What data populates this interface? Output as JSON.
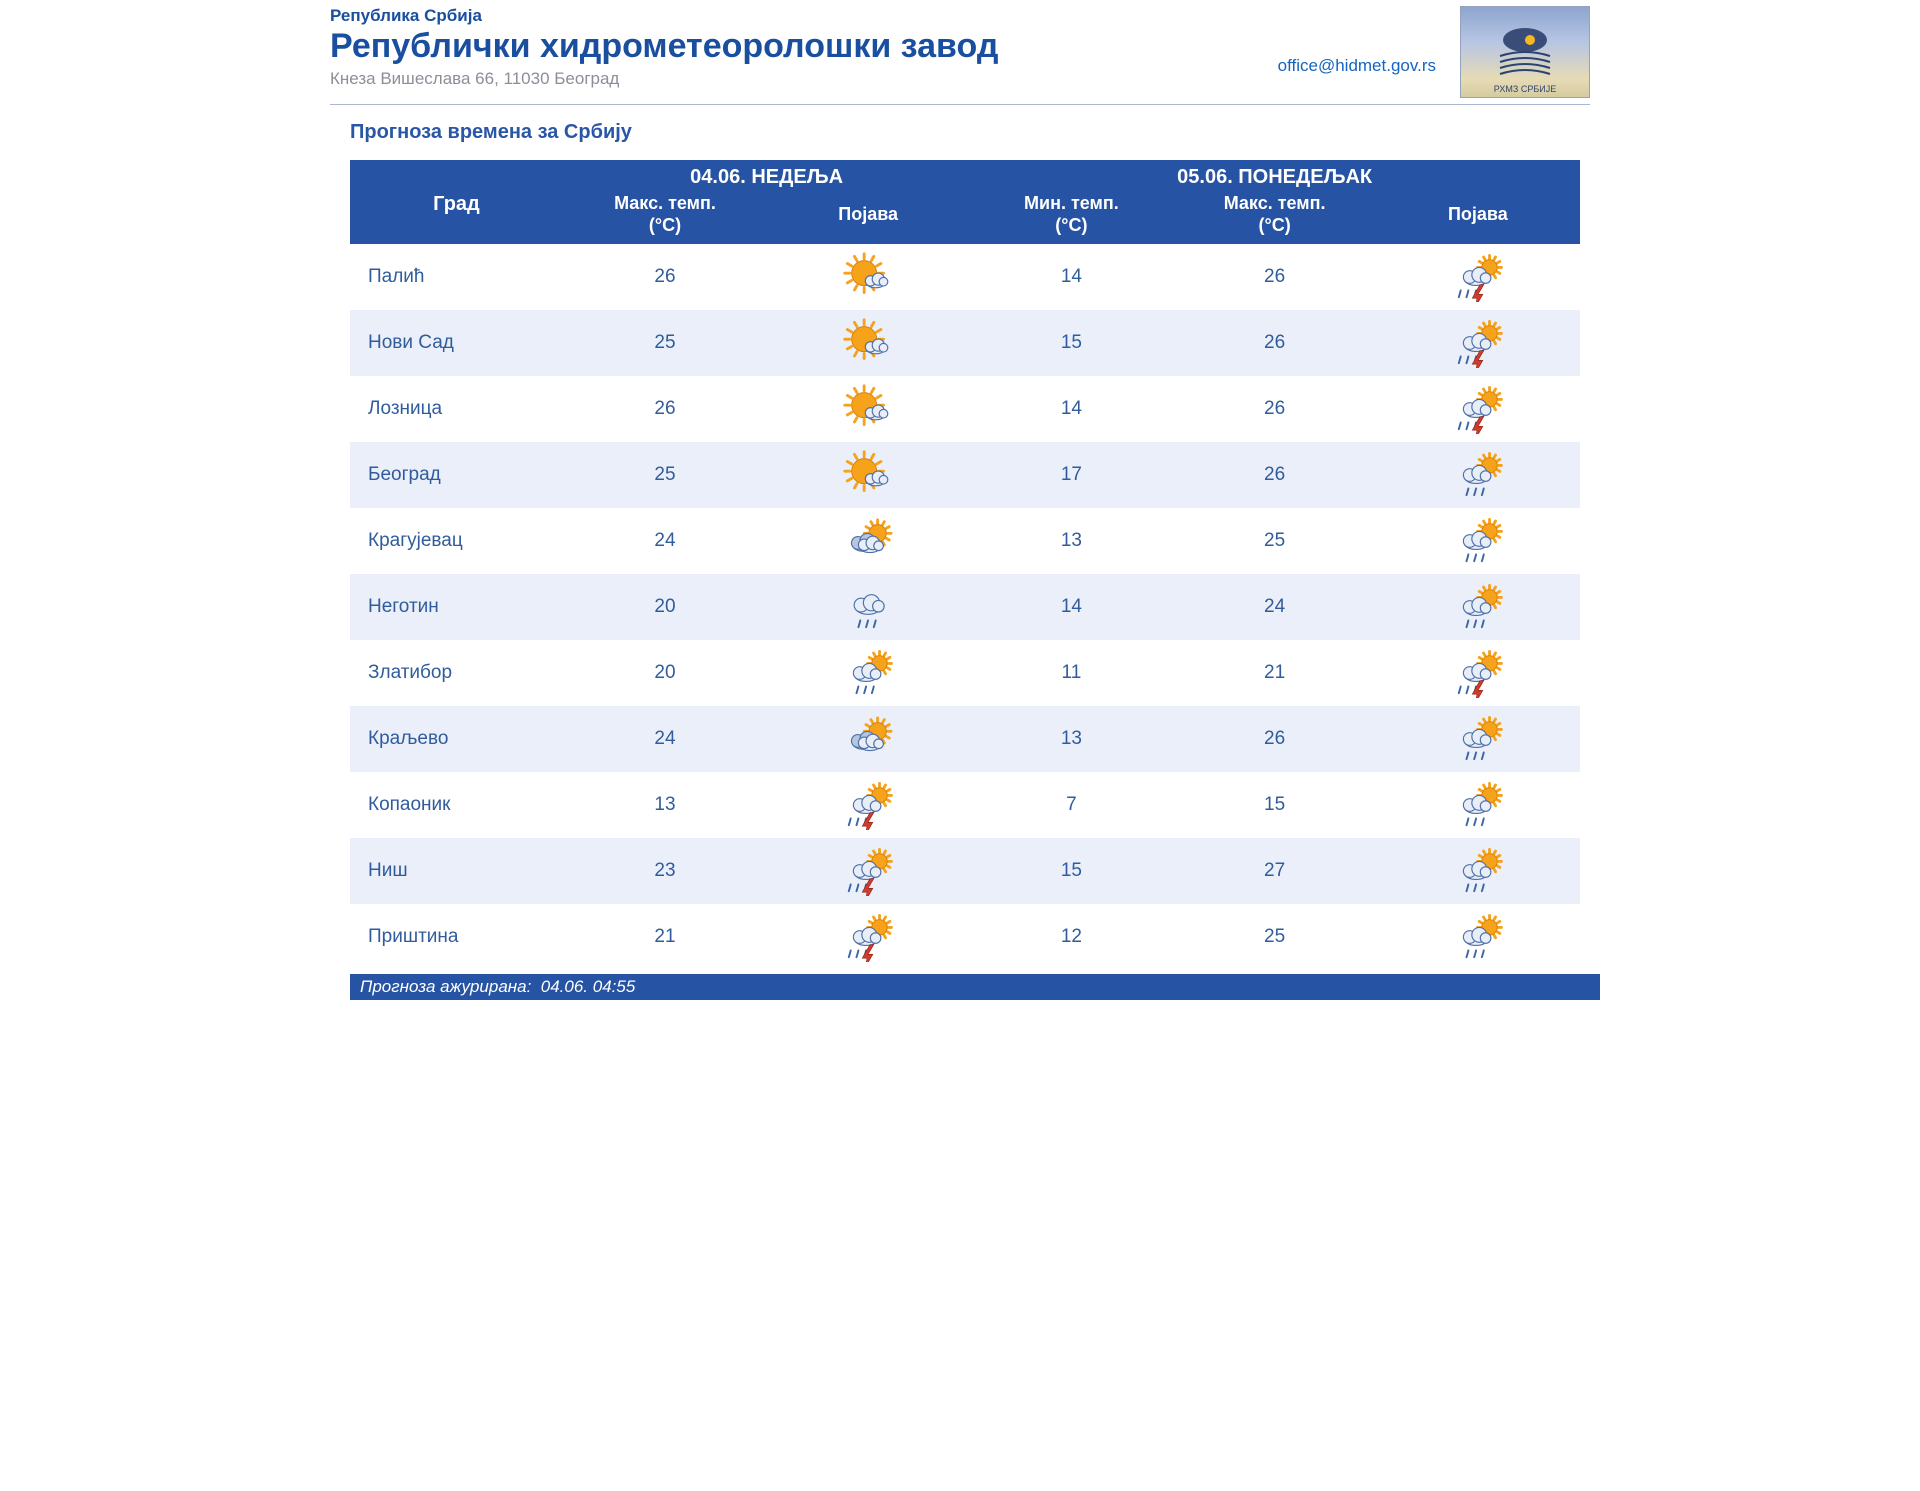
{
  "header": {
    "country": "Република Србија",
    "organization": "Републички хидрометеоролошки завод",
    "address": "Кнеза Вишеслава 66, 11030 Београд",
    "email": "office@hidmet.gov.rs",
    "logo_caption": "РХМЗ СРБИЈЕ"
  },
  "page_title": "Прогноза времена за Србију",
  "colors": {
    "header_blue": "#2653a3",
    "link_blue": "#305c9d",
    "row_even": "#eaeff9",
    "row_odd": "#ffffff",
    "text_blue": "#1a4fa0"
  },
  "table": {
    "city_header": "Град",
    "day1": {
      "date_label": "04.06. НЕДЕЉА",
      "max_label": "Макс. темп.\n(°C)",
      "appearance_label": "Појава"
    },
    "day2": {
      "date_label": "05.06. ПОНЕДЕЉАК",
      "min_label": "Мин. темп.\n(°C)",
      "max_label": "Макс. темп.\n(°C)",
      "appearance_label": "Појава"
    },
    "rows": [
      {
        "city": "Палић",
        "d1_max": 26,
        "d1_icon": "sun-cloud",
        "d2_min": 14,
        "d2_max": 26,
        "d2_icon": "storm-sun"
      },
      {
        "city": "Нови Сад",
        "d1_max": 25,
        "d1_icon": "sun-cloud",
        "d2_min": 15,
        "d2_max": 26,
        "d2_icon": "storm-sun"
      },
      {
        "city": "Лозница",
        "d1_max": 26,
        "d1_icon": "sun-cloud",
        "d2_min": 14,
        "d2_max": 26,
        "d2_icon": "storm-sun"
      },
      {
        "city": "Београд",
        "d1_max": 25,
        "d1_icon": "sun-cloud",
        "d2_min": 17,
        "d2_max": 26,
        "d2_icon": "cloud-sun-rain"
      },
      {
        "city": "Крагујевац",
        "d1_max": 24,
        "d1_icon": "cloud-sun",
        "d2_min": 13,
        "d2_max": 25,
        "d2_icon": "cloud-sun-rain"
      },
      {
        "city": "Неготин",
        "d1_max": 20,
        "d1_icon": "cloud-rain",
        "d2_min": 14,
        "d2_max": 24,
        "d2_icon": "cloud-sun-rain"
      },
      {
        "city": "Златибор",
        "d1_max": 20,
        "d1_icon": "cloud-sun-rain",
        "d2_min": 11,
        "d2_max": 21,
        "d2_icon": "storm-sun"
      },
      {
        "city": "Краљево",
        "d1_max": 24,
        "d1_icon": "cloud-sun",
        "d2_min": 13,
        "d2_max": 26,
        "d2_icon": "cloud-sun-rain"
      },
      {
        "city": "Копаоник",
        "d1_max": 13,
        "d1_icon": "storm-sun",
        "d2_min": 7,
        "d2_max": 15,
        "d2_icon": "cloud-sun-rain"
      },
      {
        "city": "Ниш",
        "d1_max": 23,
        "d1_icon": "storm-sun",
        "d2_min": 15,
        "d2_max": 27,
        "d2_icon": "cloud-sun-rain"
      },
      {
        "city": "Приштина",
        "d1_max": 21,
        "d1_icon": "storm-sun",
        "d2_min": 12,
        "d2_max": 25,
        "d2_icon": "cloud-sun-rain"
      }
    ]
  },
  "footer": {
    "updated_label": "Прогноза ажурирана:",
    "updated_value": "04.06. 04:55"
  },
  "icon_palette": {
    "sun_fill": "#f6a21b",
    "sun_stroke": "#d97f0b",
    "cloud_fill": "#e8eef8",
    "cloud_stroke": "#4f6fa8",
    "cloud_dark": "#b6c6e1",
    "rain": "#3c67a5",
    "bolt": "#d23a2a"
  }
}
